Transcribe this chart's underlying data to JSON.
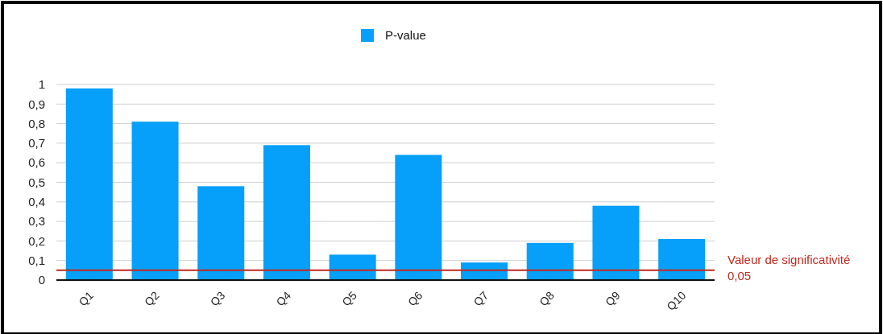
{
  "chart_data": {
    "type": "bar",
    "categories": [
      "Q1",
      "Q2",
      "Q3",
      "Q4",
      "Q5",
      "Q6",
      "Q7",
      "Q8",
      "Q9",
      "Q10"
    ],
    "series": [
      {
        "name": "P-value",
        "color": "#069ffa",
        "values": [
          0.98,
          0.81,
          0.48,
          0.69,
          0.13,
          0.64,
          0.09,
          0.19,
          0.38,
          0.21
        ]
      }
    ],
    "ylim": [
      0,
      1
    ],
    "yticks": [
      0,
      {
        "value": 0.1,
        "label": "0,1"
      },
      {
        "value": 0.2,
        "label": "0,2"
      },
      {
        "value": 0.3,
        "label": "0,3"
      },
      {
        "value": 0.4,
        "label": "0,4"
      },
      {
        "value": 0.5,
        "label": "0,5"
      },
      {
        "value": 0.6,
        "label": "0,6"
      },
      {
        "value": 0.7,
        "label": "0,7"
      },
      {
        "value": 0.8,
        "label": "0,8"
      },
      {
        "value": 0.9,
        "label": "0,9"
      },
      1
    ],
    "grid": "y",
    "legend": "top",
    "ref_lines": [
      {
        "axis": "y",
        "value": 0.05,
        "label": "Valeur de significativité\n0,05",
        "color": "#c0291d"
      }
    ]
  }
}
